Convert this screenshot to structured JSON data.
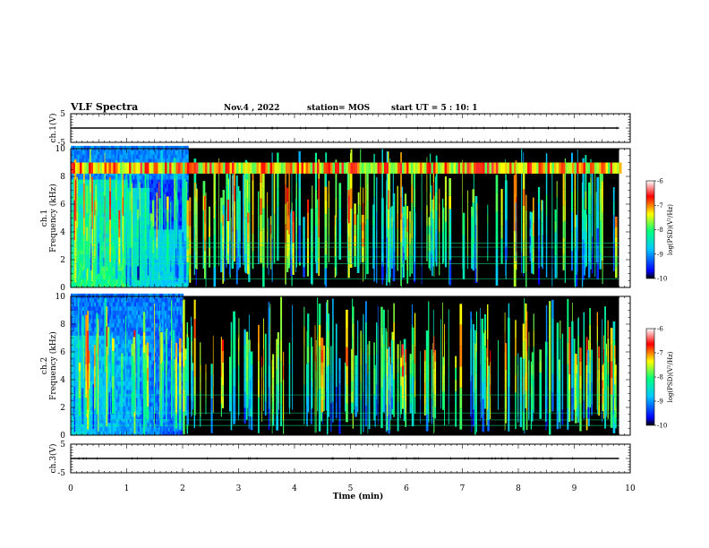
{
  "header": {
    "title": "VLF Spectra",
    "date": "Nov.4 , 2022",
    "station": "station= MOS",
    "start": "start UT =  5 : 10: 1"
  },
  "chart_data": [
    {
      "type": "line",
      "name": "ch1-waveform",
      "ylabel": "ch.1(V)",
      "ylim": [
        -5,
        5
      ],
      "yticks": [
        "5",
        "-5"
      ],
      "xlim": [
        0,
        10
      ],
      "x": [
        0,
        9.8
      ],
      "y": [
        0,
        0
      ],
      "color": "#000000"
    },
    {
      "type": "heatmap",
      "name": "ch1-spectrogram",
      "ylabel": "ch.1\nFrequency (kHz)",
      "xlim": [
        0,
        10
      ],
      "ylim": [
        0,
        10
      ],
      "yticks": [
        "0",
        "2",
        "4",
        "6",
        "8",
        "10"
      ],
      "data_extent_min": 9.8,
      "colorbar": {
        "label": "log(PSD)(V²/Hz)",
        "range": [
          -10,
          -6
        ],
        "ticks": [
          "-6",
          "-7",
          "-8",
          "-9",
          "-10"
        ]
      }
    },
    {
      "type": "heatmap",
      "name": "ch2-spectrogram",
      "ylabel": "ch.2\nFrequency (kHz)",
      "xlim": [
        0,
        10
      ],
      "ylim": [
        0,
        10
      ],
      "yticks": [
        "0",
        "2",
        "4",
        "6",
        "8",
        "10"
      ],
      "data_extent_min": 9.8,
      "colorbar": {
        "label": "log(PSD)(V²/Hz)",
        "range": [
          -10,
          -6
        ],
        "ticks": [
          "-6",
          "-7",
          "-8",
          "-9",
          "-10"
        ]
      }
    },
    {
      "type": "line",
      "name": "ch3-waveform",
      "ylabel": "ch.3(V)",
      "ylim": [
        -5,
        5
      ],
      "yticks": [
        "5",
        "-5"
      ],
      "xlim": [
        0,
        10
      ],
      "x": [
        0,
        9.8
      ],
      "y": [
        0,
        0
      ],
      "color": "#000000"
    }
  ],
  "xaxis": {
    "label": "Time (min)",
    "ticks": [
      "0",
      "1",
      "2",
      "3",
      "4",
      "5",
      "6",
      "7",
      "8",
      "9",
      "10"
    ]
  },
  "colors": {
    "background": "#ffffff",
    "spectrogram_floor": "#000000",
    "colormap": [
      "#0000ff",
      "#00c8ff",
      "#00ff80",
      "#ffff00",
      "#ff0000",
      "#ffffff"
    ]
  }
}
